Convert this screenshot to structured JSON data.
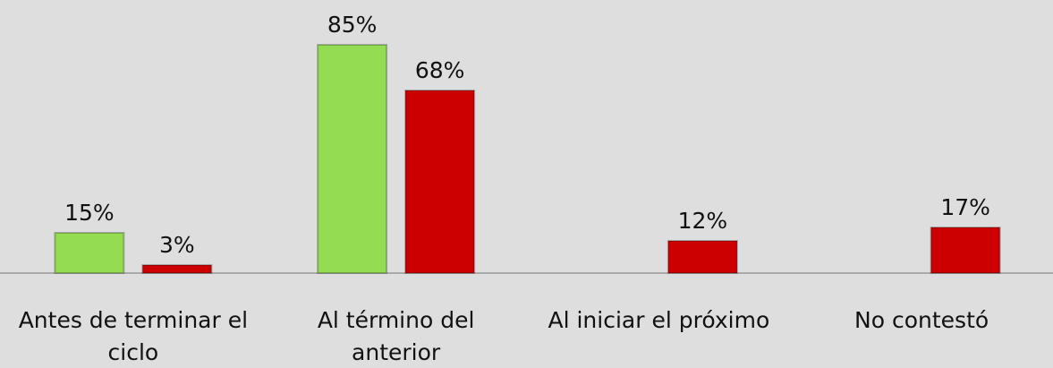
{
  "chart_data": {
    "type": "bar",
    "categories": [
      "Antes de terminar el ciclo",
      "Al término del anterior",
      "Al iniciar el próximo",
      "No contestó"
    ],
    "series": [
      {
        "color": "#94dc52",
        "values": [
          15,
          85,
          null,
          null
        ],
        "value_labels": [
          "15%",
          "85%",
          null,
          null
        ]
      },
      {
        "color": "#cc0000",
        "values": [
          3,
          68,
          12,
          17
        ],
        "value_labels": [
          "3%",
          "68%",
          "12%",
          "17%"
        ]
      }
    ],
    "ylim": [
      0,
      100
    ]
  }
}
